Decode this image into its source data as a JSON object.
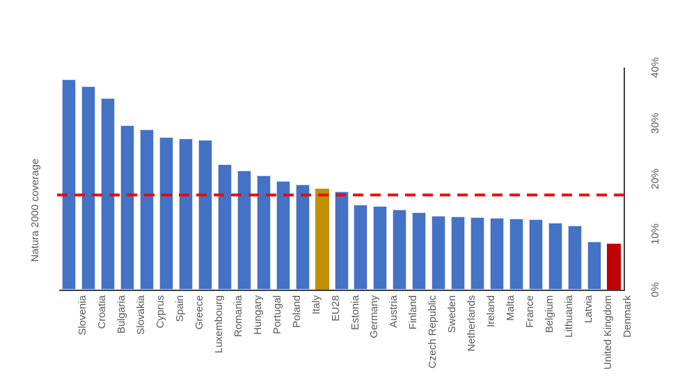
{
  "chart_data": {
    "type": "bar",
    "title": "",
    "ylabel": "Natura 2000 coverage",
    "xlabel": "",
    "categories": [
      "Slovenia",
      "Croatia",
      "Bulgaria",
      "Slovakia",
      "Cyprus",
      "Spain",
      "Greece",
      "Luxembourg",
      "Romania",
      "Hungary",
      "Portugal",
      "Poland",
      "Italy",
      "EU28",
      "Estonia",
      "Germany",
      "Austria",
      "Finland",
      "Czech Republic",
      "Sweden",
      "Netherlands",
      "Ireland",
      "Malta",
      "France",
      "Belgium",
      "Lithuania",
      "Latvia",
      "United Kingdom",
      "Denmark"
    ],
    "values": [
      37.9,
      36.6,
      34.5,
      29.6,
      28.8,
      27.4,
      27.2,
      27.0,
      22.6,
      21.4,
      20.6,
      19.6,
      18.9,
      18.2,
      17.7,
      15.3,
      15.0,
      14.4,
      13.9,
      13.3,
      13.2,
      13.0,
      12.9,
      12.8,
      12.7,
      12.1,
      11.5,
      8.6,
      8.3
    ],
    "ylim": [
      0,
      40
    ],
    "yticks": [
      0,
      10,
      20,
      30,
      40
    ],
    "ytick_labels": [
      "0%",
      "10%",
      "20%",
      "30%",
      "40%"
    ],
    "grid": false,
    "legend": "none",
    "y_axis_side": "right",
    "label_rotation_deg": -90,
    "reference_line": {
      "value": 17,
      "style": "dashed",
      "color": "#FF0000"
    },
    "bar_colors": {
      "default": "#4472C4",
      "EU28": "#BF9000",
      "Denmark": "#C00000"
    }
  },
  "colors": {
    "axis_line": "#404040",
    "text": "#595959",
    "background": "#FFFFFF",
    "bar_edge": "#CCD6EF"
  }
}
